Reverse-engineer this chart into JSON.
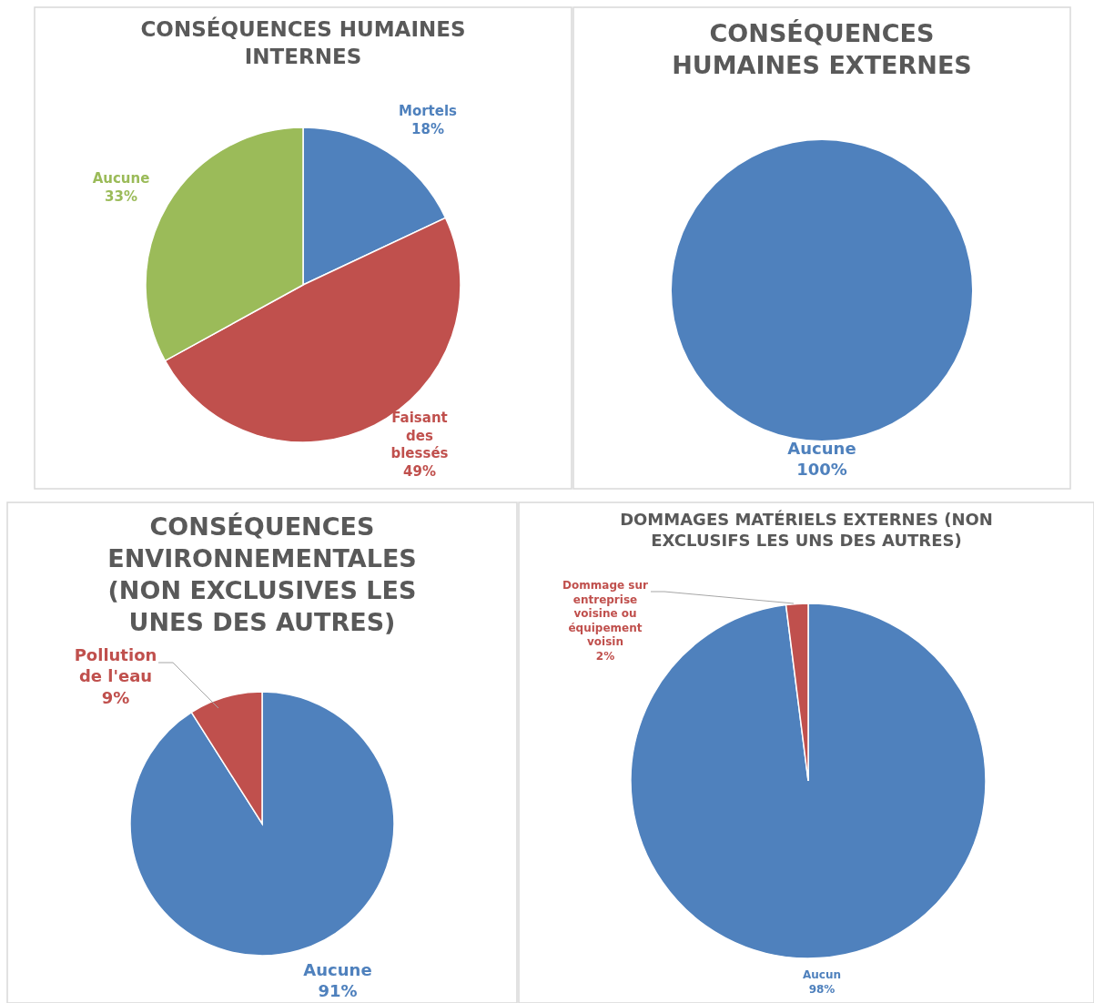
{
  "chart_data": [
    {
      "type": "pie",
      "title": "CONSÉQUENCES HUMAINES INTERNES",
      "categories": [
        "Mortels",
        "Faisant des blessés",
        "Aucune"
      ],
      "values": [
        18,
        49,
        33
      ],
      "colors": [
        "#4f81bd",
        "#c0504d",
        "#9bbb59"
      ],
      "value_labels": [
        "18%",
        "49%",
        "33%"
      ]
    },
    {
      "type": "pie",
      "title": "CONSÉQUENCES HUMAINES EXTERNES",
      "categories": [
        "Aucune"
      ],
      "values": [
        100
      ],
      "colors": [
        "#4f81bd"
      ],
      "value_labels": [
        "100%"
      ]
    },
    {
      "type": "pie",
      "title": "CONSÉQUENCES ENVIRONNEMENTALES (NON EXCLUSIVES LES UNES DES AUTRES)",
      "categories": [
        "Aucune",
        "Pollution de l'eau"
      ],
      "values": [
        91,
        9
      ],
      "colors": [
        "#4f81bd",
        "#c0504d"
      ],
      "value_labels": [
        "91%",
        "9%"
      ]
    },
    {
      "type": "pie",
      "title": "DOMMAGES MATÉRIELS EXTERNES (NON EXCLUSIFS LES UNS DES AUTRES)",
      "categories": [
        "Aucun",
        "Dommage sur entreprise voisine ou équipement voisin"
      ],
      "values": [
        98,
        2
      ],
      "colors": [
        "#4f81bd",
        "#c0504d"
      ],
      "value_labels": [
        "98%",
        "2%"
      ]
    }
  ]
}
